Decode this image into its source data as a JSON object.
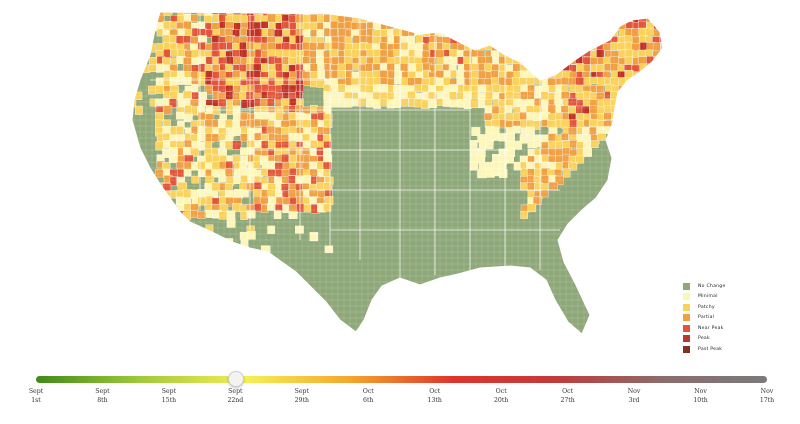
{
  "map": {
    "colors": {
      "background": "#ffffff",
      "no_change": "#8fa87a",
      "minimal": "#fdf6b9",
      "patchy": "#fad25a",
      "partial": "#f0a042",
      "near_peak": "#e2553a",
      "peak": "#c03226",
      "past_peak": "#7d3424",
      "borders": "#ffffff"
    },
    "dominant_state": "no_change"
  },
  "legend": {
    "items": [
      {
        "label": "No Change",
        "color": "#8fa87a"
      },
      {
        "label": "Minimal",
        "color": "#fdf6b9"
      },
      {
        "label": "Patchy",
        "color": "#fad25a"
      },
      {
        "label": "Partial",
        "color": "#f0a042"
      },
      {
        "label": "Near Peak",
        "color": "#e2553a"
      },
      {
        "label": "Peak",
        "color": "#b83a2c"
      },
      {
        "label": "Past Peak",
        "color": "#7d3424"
      }
    ]
  },
  "timeline": {
    "dates": [
      {
        "month": "Sept",
        "day": "1st"
      },
      {
        "month": "Sept",
        "day": "8th"
      },
      {
        "month": "Sept",
        "day": "15th"
      },
      {
        "month": "Sept",
        "day": "22nd"
      },
      {
        "month": "Sept",
        "day": "29th"
      },
      {
        "month": "Oct",
        "day": "6th"
      },
      {
        "month": "Oct",
        "day": "13th"
      },
      {
        "month": "Oct",
        "day": "20th"
      },
      {
        "month": "Oct",
        "day": "27th"
      },
      {
        "month": "Nov",
        "day": "3rd"
      },
      {
        "month": "Nov",
        "day": "10th"
      },
      {
        "month": "Nov",
        "day": "17th"
      }
    ],
    "selected_index": 3,
    "gradient_colors": [
      "#3f8a1a",
      "#9fc83a",
      "#f5ef55",
      "#f3a62d",
      "#e0342a",
      "#c23a3a",
      "#8a6d6d",
      "#7a7a7a"
    ]
  }
}
